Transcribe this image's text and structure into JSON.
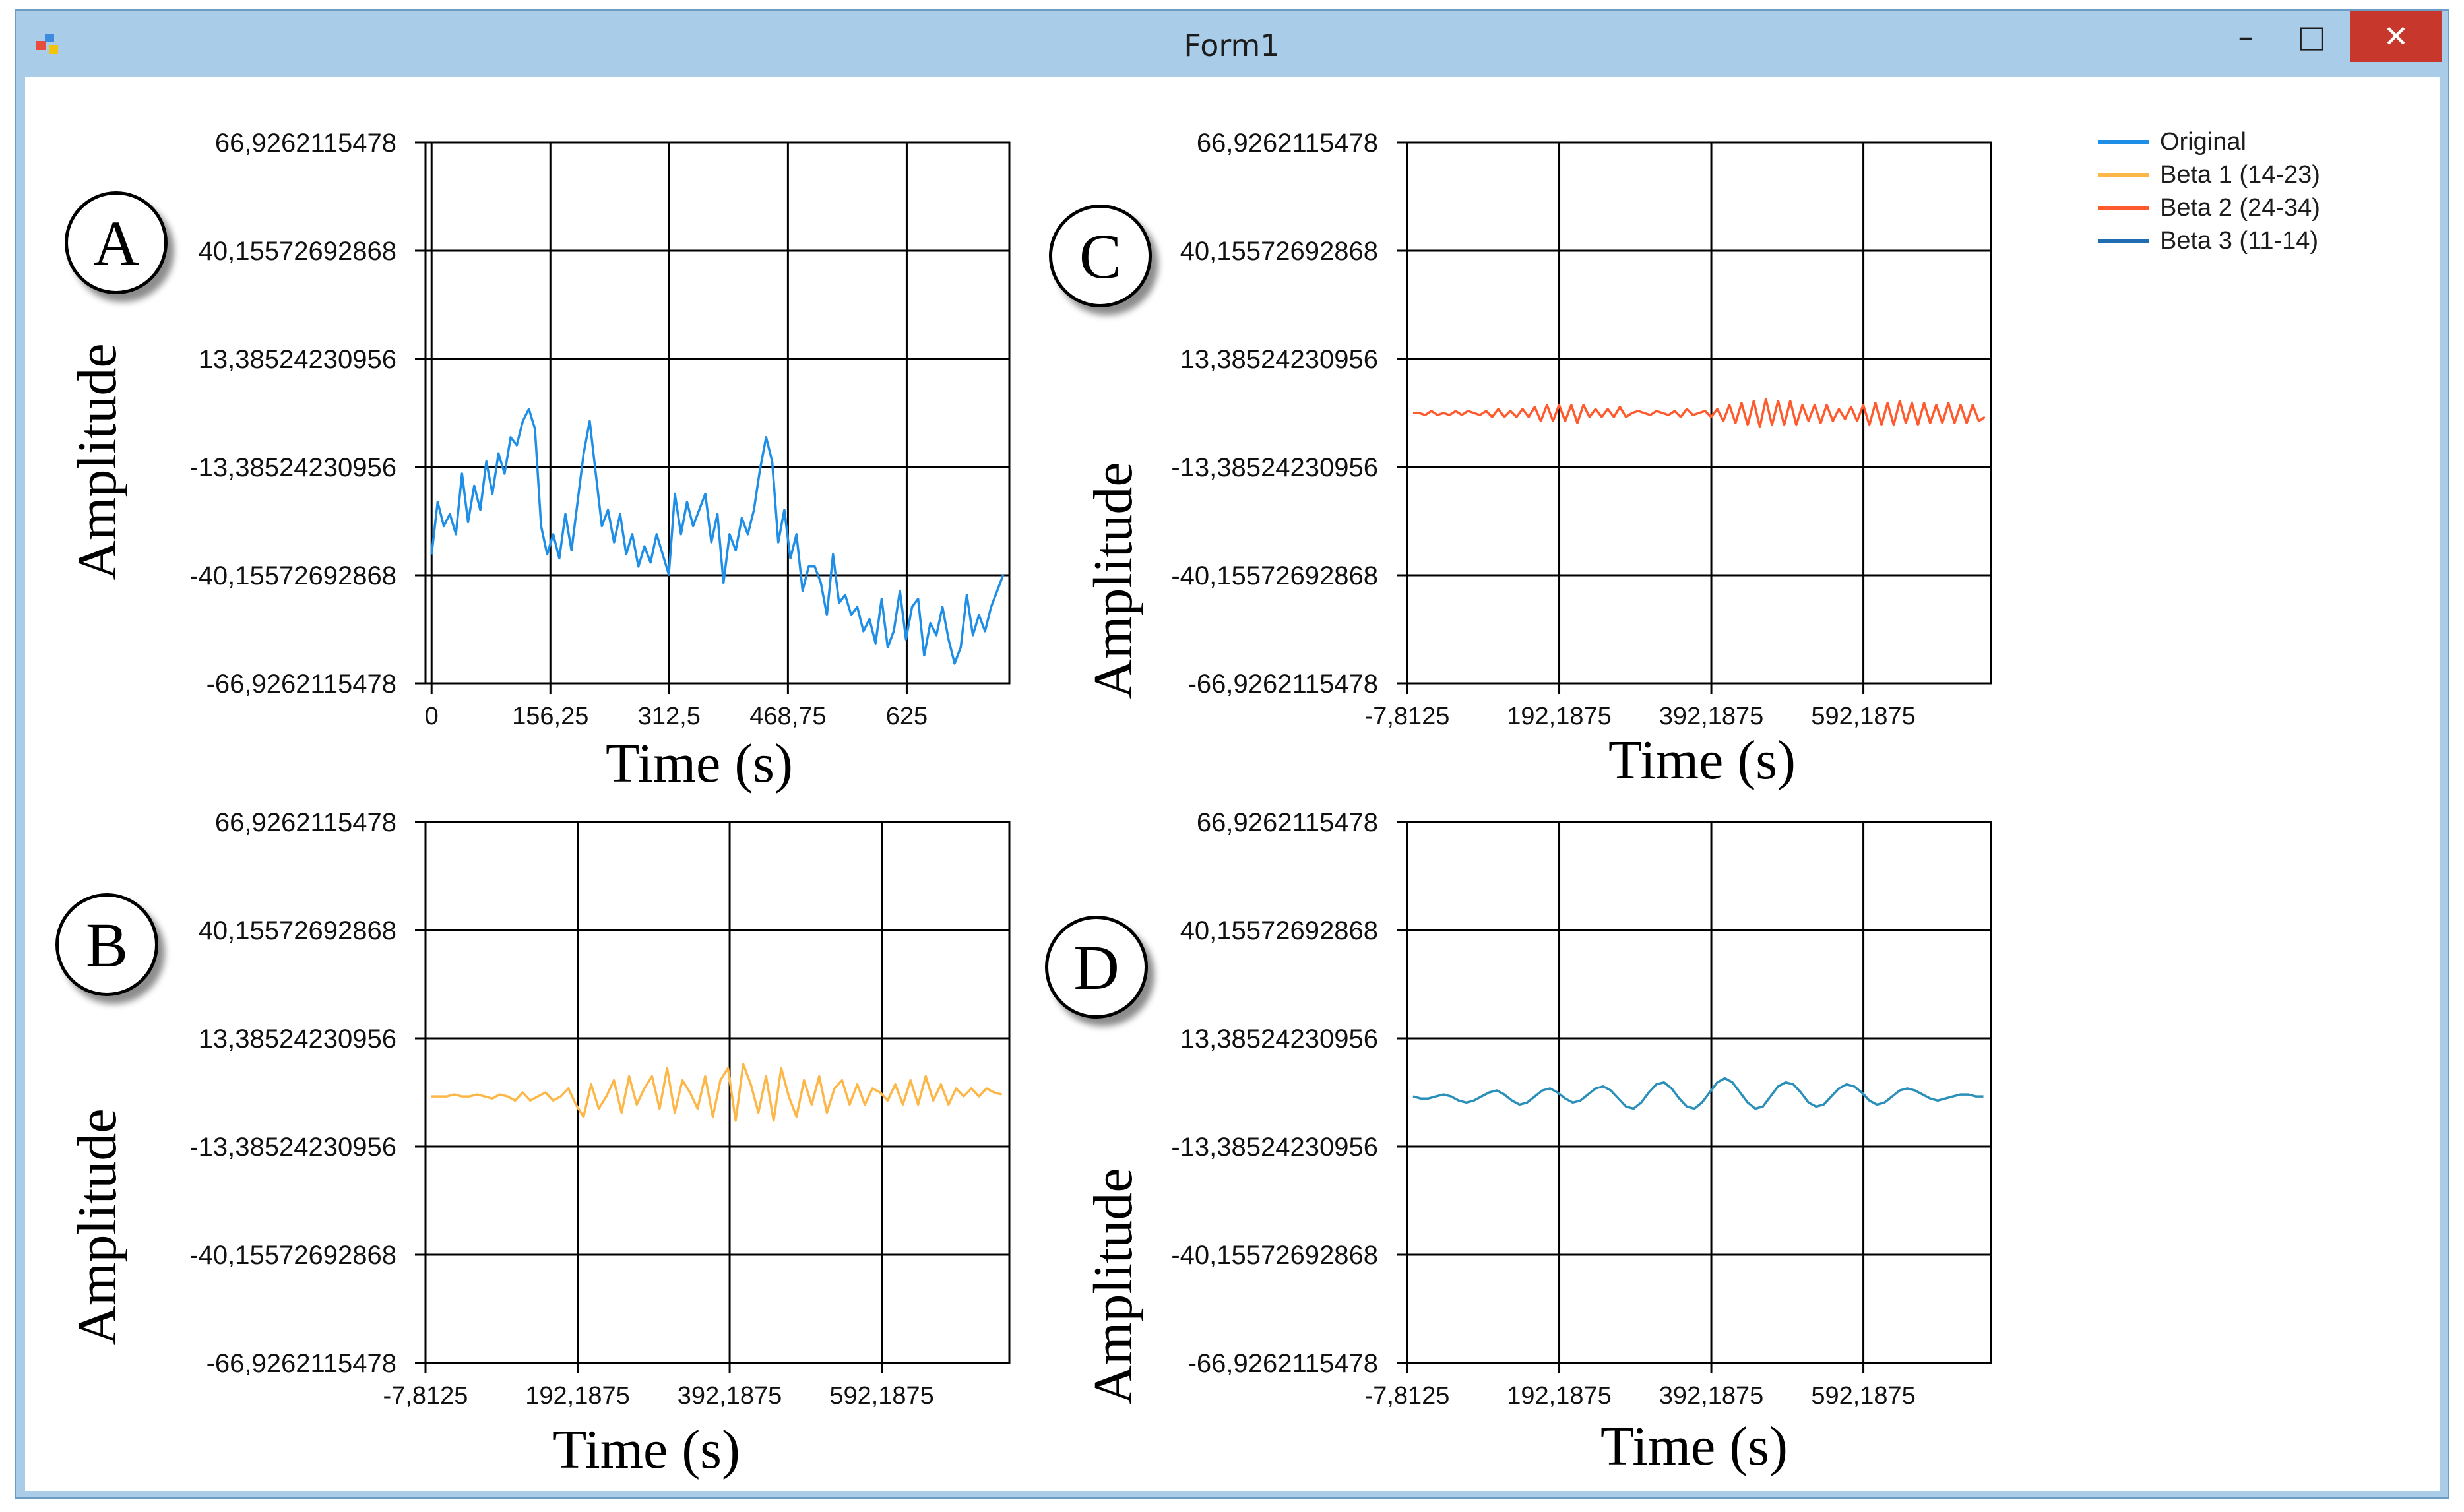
{
  "window": {
    "title": "Form1",
    "controls": {
      "minimize": "–",
      "maximize": "□",
      "close": "✕"
    },
    "icon": "form-app-icon",
    "colors": {
      "frame": "#a9cde9",
      "close": "#c7372b"
    }
  },
  "legend": [
    {
      "label": "Original",
      "color": "#1e8ee6"
    },
    {
      "label": "Beta 1  (14-23)",
      "color": "#fdb748"
    },
    {
      "label": "Beta 2  (24-34)",
      "color": "#ff5a2e"
    },
    {
      "label": "Beta 3  (11-14)",
      "color": "#1f6db0"
    }
  ],
  "chart_data": [
    {
      "id": "A",
      "panel_label": "A",
      "type": "line",
      "series_name": "Original",
      "color": "#1e8ee6",
      "xlabel": "Time (s)",
      "ylabel": "Amplitude",
      "xlim": [
        -8,
        760
      ],
      "ylim": [
        -66.9262115478,
        66.9262115478
      ],
      "xticks": [
        0,
        156.25,
        312.5,
        468.75,
        625
      ],
      "xtick_labels": [
        "0",
        "156,25",
        "312,5",
        "468,75",
        "625"
      ],
      "yticks": [
        66.9262115478,
        40.15572692868,
        13.38524230956,
        -13.38524230956,
        -40.15572692868,
        -66.9262115478
      ],
      "ytick_labels": [
        "66,9262115478",
        "40,15572692868",
        "13,38524230956",
        "-13,38524230956",
        "-40,15572692868",
        "-66,9262115478"
      ],
      "x": [
        0,
        8,
        16,
        24,
        32,
        40,
        48,
        56,
        64,
        72,
        80,
        88,
        96,
        104,
        112,
        120,
        128,
        136,
        144,
        152,
        160,
        168,
        176,
        184,
        192,
        200,
        208,
        216,
        224,
        232,
        240,
        248,
        256,
        264,
        272,
        280,
        288,
        296,
        304,
        312,
        320,
        328,
        336,
        344,
        352,
        360,
        368,
        376,
        384,
        392,
        400,
        408,
        416,
        424,
        432,
        440,
        448,
        456,
        464,
        472,
        480,
        488,
        496,
        504,
        512,
        520,
        528,
        536,
        544,
        552,
        560,
        568,
        576,
        584,
        592,
        600,
        608,
        616,
        624,
        632,
        640,
        648,
        656,
        664,
        672,
        680,
        688,
        696,
        704,
        712,
        720,
        728,
        736,
        744,
        752
      ],
      "y": [
        -35,
        -22,
        -28,
        -25,
        -30,
        -15,
        -27,
        -18,
        -24,
        -12,
        -20,
        -10,
        -15,
        -6,
        -8,
        -2,
        1,
        -4,
        -28,
        -35,
        -30,
        -36,
        -25,
        -34,
        -22,
        -10,
        -2,
        -15,
        -28,
        -24,
        -32,
        -25,
        -35,
        -30,
        -38,
        -33,
        -37,
        -30,
        -35,
        -40,
        -20,
        -30,
        -22,
        -28,
        -24,
        -20,
        -32,
        -25,
        -42,
        -30,
        -34,
        -26,
        -30,
        -24,
        -14,
        -6,
        -12,
        -32,
        -24,
        -36,
        -30,
        -44,
        -38,
        -38,
        -42,
        -50,
        -35,
        -47,
        -45,
        -50,
        -48,
        -54,
        -51,
        -57,
        -46,
        -58,
        -54,
        -44,
        -56,
        -48,
        -46,
        -60,
        -52,
        -55,
        -48,
        -56,
        -62,
        -58,
        -45,
        -55,
        -50,
        -54,
        -48,
        -44,
        -40
      ]
    },
    {
      "id": "B",
      "panel_label": "B",
      "type": "line",
      "series_name": "Beta 1 (14-23)",
      "color": "#fdb748",
      "xlabel": "Time (s)",
      "ylabel": "Amplitude",
      "xlim": [
        -7.8125,
        760
      ],
      "ylim": [
        -66.9262115478,
        66.9262115478
      ],
      "xticks": [
        -7.8125,
        192.1875,
        392.1875,
        592.1875
      ],
      "xtick_labels": [
        "-7,8125",
        "192,1875",
        "392,1875",
        "592,1875"
      ],
      "yticks": [
        66.9262115478,
        40.15572692868,
        13.38524230956,
        -13.38524230956,
        -40.15572692868,
        -66.9262115478
      ],
      "ytick_labels": [
        "66,9262115478",
        "40,15572692868",
        "13,38524230956",
        "-13,38524230956",
        "-40,15572692868",
        "-66,9262115478"
      ],
      "x": [
        0,
        10,
        20,
        30,
        40,
        50,
        60,
        70,
        80,
        90,
        100,
        110,
        120,
        130,
        140,
        150,
        160,
        170,
        180,
        190,
        200,
        210,
        220,
        230,
        240,
        250,
        260,
        270,
        280,
        290,
        300,
        310,
        320,
        330,
        340,
        350,
        360,
        370,
        380,
        390,
        400,
        410,
        420,
        430,
        440,
        450,
        460,
        470,
        480,
        490,
        500,
        510,
        520,
        530,
        540,
        550,
        560,
        570,
        580,
        590,
        600,
        610,
        620,
        630,
        640,
        650,
        660,
        670,
        680,
        690,
        700,
        710,
        720,
        730,
        740,
        750
      ],
      "y": [
        -1,
        -1,
        -1,
        -0.5,
        -1,
        -1,
        -0.5,
        -1,
        -1.5,
        -0.5,
        -1,
        -2,
        0,
        -2,
        -1,
        0,
        -2,
        -1,
        1,
        -3,
        -6,
        2,
        -4,
        -1,
        3,
        -5,
        4,
        -3,
        1,
        4,
        -4,
        6,
        -5,
        3,
        0,
        -4,
        4,
        -6,
        3,
        6,
        -7,
        7,
        2,
        -5,
        4,
        -7,
        6,
        -1,
        -6,
        3,
        -3,
        4,
        -5,
        1,
        3,
        -3,
        2,
        -3,
        1,
        0,
        -2,
        2,
        -3,
        3,
        -3,
        4,
        -2,
        2,
        -3,
        1,
        -1,
        1,
        -1,
        1,
        0,
        -0.5
      ]
    },
    {
      "id": "C",
      "panel_label": "C",
      "type": "line",
      "series_name": "Beta 2 (24-34)",
      "color": "#ff5a2e",
      "xlabel": "Time (s)",
      "ylabel": "Amplitude",
      "xlim": [
        -7.8125,
        760
      ],
      "ylim": [
        -66.9262115478,
        66.9262115478
      ],
      "xticks": [
        -7.8125,
        192.1875,
        392.1875,
        592.1875
      ],
      "xtick_labels": [
        "-7,8125",
        "192,1875",
        "392,1875",
        "592,1875"
      ],
      "yticks": [
        66.9262115478,
        40.15572692868,
        13.38524230956,
        -13.38524230956,
        -40.15572692868,
        -66.9262115478
      ],
      "ytick_labels": [
        "66,9262115478",
        "40,15572692868",
        "13,38524230956",
        "-13,38524230956",
        "-40,15572692868",
        "-66,9262115478"
      ],
      "x": [
        0,
        8,
        16,
        24,
        32,
        40,
        48,
        56,
        64,
        72,
        80,
        88,
        96,
        104,
        112,
        120,
        128,
        136,
        144,
        152,
        160,
        168,
        176,
        184,
        192,
        200,
        208,
        216,
        224,
        232,
        240,
        248,
        256,
        264,
        272,
        280,
        288,
        296,
        304,
        312,
        320,
        328,
        336,
        344,
        352,
        360,
        368,
        376,
        384,
        392,
        400,
        408,
        416,
        424,
        432,
        440,
        448,
        456,
        464,
        472,
        480,
        488,
        496,
        504,
        512,
        520,
        528,
        536,
        544,
        552,
        560,
        568,
        576,
        584,
        592,
        600,
        608,
        616,
        624,
        632,
        640,
        648,
        656,
        664,
        672,
        680,
        688,
        696,
        704,
        712,
        720,
        728,
        736,
        744,
        752
      ],
      "y": [
        0,
        0,
        -0.5,
        0.5,
        -0.5,
        0,
        -0.5,
        0.5,
        -0.5,
        0.5,
        0,
        -0.5,
        0.5,
        -1,
        1,
        -1,
        0.5,
        -1,
        1,
        -1,
        1.5,
        -2,
        2,
        -2,
        2,
        -2,
        2,
        -2.5,
        2,
        -1,
        1,
        -1,
        1,
        -1,
        1.5,
        -1,
        0,
        0.5,
        0,
        -0.5,
        0.5,
        0,
        -0.5,
        0.5,
        -1,
        1,
        -0.5,
        0,
        0.5,
        -1,
        1,
        -2,
        2,
        -2.5,
        2.5,
        -3,
        3,
        -3.5,
        3.5,
        -3,
        3,
        -3,
        3,
        -3,
        2,
        -2,
        2,
        -2.5,
        2,
        -2,
        1,
        -1.5,
        1.5,
        -2,
        2,
        -3,
        2.5,
        -3,
        2.5,
        -3,
        3,
        -2.5,
        2.5,
        -3,
        2.5,
        -2.5,
        2,
        -2.5,
        2.5,
        -2.5,
        2,
        -2.5,
        2,
        -2,
        -1
      ]
    },
    {
      "id": "D",
      "panel_label": "D",
      "type": "line",
      "series_name": "Beta 3 (11-14)",
      "color": "#2a8fb9",
      "xlabel": "Time (s)",
      "ylabel": "Amplitude",
      "xlim": [
        -7.8125,
        760
      ],
      "ylim": [
        -66.9262115478,
        66.9262115478
      ],
      "xticks": [
        -7.8125,
        192.1875,
        392.1875,
        592.1875
      ],
      "xtick_labels": [
        "-7,8125",
        "192,1875",
        "392,1875",
        "592,1875"
      ],
      "yticks": [
        66.9262115478,
        40.15572692868,
        13.38524230956,
        -13.38524230956,
        -40.15572692868,
        -66.9262115478
      ],
      "ytick_labels": [
        "66,9262115478",
        "40,15572692868",
        "13,38524230956",
        "-13,38524230956",
        "-40,15572692868",
        "-66,9262115478"
      ],
      "x": [
        0,
        10,
        20,
        30,
        40,
        50,
        60,
        70,
        80,
        90,
        100,
        110,
        120,
        130,
        140,
        150,
        160,
        170,
        180,
        190,
        200,
        210,
        220,
        230,
        240,
        250,
        260,
        270,
        280,
        290,
        300,
        310,
        320,
        330,
        340,
        350,
        360,
        370,
        380,
        390,
        400,
        410,
        420,
        430,
        440,
        450,
        460,
        470,
        480,
        490,
        500,
        510,
        520,
        530,
        540,
        550,
        560,
        570,
        580,
        590,
        600,
        610,
        620,
        630,
        640,
        650,
        660,
        670,
        680,
        690,
        700,
        710,
        720,
        730,
        740,
        750
      ],
      "y": [
        -1,
        -1.5,
        -1.5,
        -1,
        -0.5,
        -1,
        -2,
        -2.5,
        -2,
        -1,
        0,
        0.5,
        -0.5,
        -2,
        -3,
        -2.5,
        -1,
        0.5,
        1,
        0,
        -1.5,
        -2.5,
        -2,
        -0.5,
        1,
        1.5,
        0.5,
        -1.5,
        -3.5,
        -4,
        -2.5,
        0,
        2,
        2.5,
        1,
        -1.5,
        -3.5,
        -4,
        -2.5,
        0,
        2.5,
        3.5,
        2.5,
        0,
        -2.5,
        -4,
        -3.5,
        -1,
        1.5,
        2.5,
        2,
        0,
        -2.5,
        -3.5,
        -3,
        -1,
        1,
        2,
        1.5,
        0,
        -2,
        -3,
        -2.5,
        -1,
        0.5,
        1,
        0.5,
        -0.5,
        -1.5,
        -2,
        -1.5,
        -1,
        -0.5,
        -0.5,
        -1,
        -1
      ]
    }
  ]
}
